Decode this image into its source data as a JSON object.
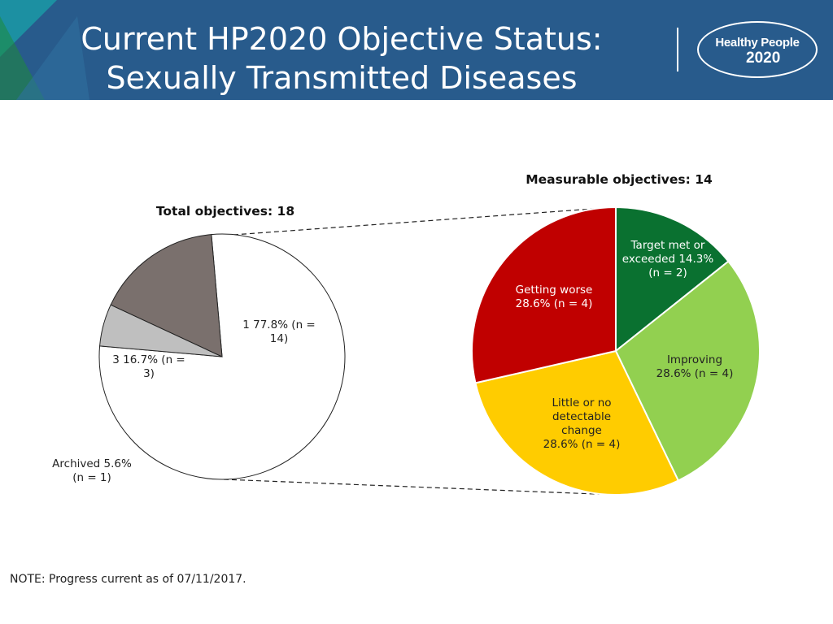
{
  "header": {
    "title_line1": "Current HP2020 Objective Status:",
    "title_line2": "Sexually Transmitted Diseases",
    "logo_line1": "Healthy People",
    "logo_line2": "2020",
    "colors": {
      "background": "#285b8c",
      "accent_teal": "#1a9aa6",
      "accent_green": "#1e8a3a"
    }
  },
  "chart_data": [
    {
      "type": "pie",
      "title": "Total objectives: 18",
      "slices": [
        {
          "label_lines": [
            "1  77.8% (n =",
            "14)"
          ],
          "value": 14,
          "percent": 77.8,
          "color": "#ffffff"
        },
        {
          "label_lines": [
            "Archived 5.6%",
            "(n = 1)"
          ],
          "value": 1,
          "percent": 5.6,
          "color": "#bfbfbf"
        },
        {
          "label_lines": [
            "3 16.7% (n =",
            "3)"
          ],
          "value": 3,
          "percent": 16.7,
          "color": "#7a706d"
        }
      ]
    },
    {
      "type": "pie",
      "title": "Measurable objectives:  14",
      "slices": [
        {
          "label_lines": [
            "Target met or",
            "exceeded 14.3%",
            "(n = 2)"
          ],
          "value": 2,
          "percent": 14.3,
          "color": "#0a7130"
        },
        {
          "label_lines": [
            "Improving",
            "28.6% (n = 4)"
          ],
          "value": 4,
          "percent": 28.6,
          "color": "#92d050"
        },
        {
          "label_lines": [
            "Little or no",
            "detectable",
            "change",
            "28.6% (n = 4)"
          ],
          "value": 4,
          "percent": 28.6,
          "color": "#ffcc00"
        },
        {
          "label_lines": [
            "Getting worse",
            "28.6% (n = 4)"
          ],
          "value": 4,
          "percent": 28.6,
          "color": "#c00000"
        }
      ]
    }
  ],
  "note": "NOTE: Progress current as of 07/11/2017."
}
